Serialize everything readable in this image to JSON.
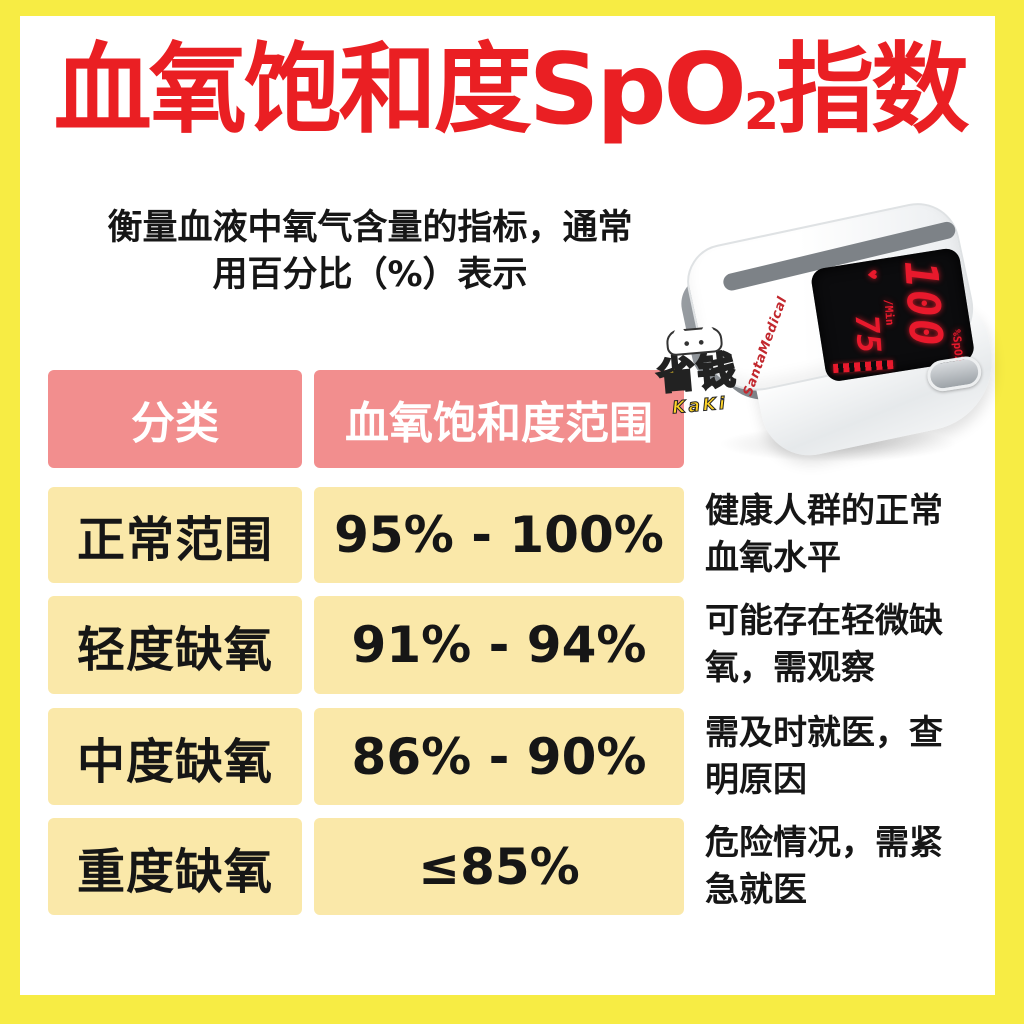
{
  "title": {
    "part1": "血氧饱和度SpO",
    "subscript": "2",
    "part2": "指数"
  },
  "subtitle": {
    "line1": "衡量血液中氧气含量的指标，通常",
    "line2": "用百分比（%）表示"
  },
  "device": {
    "brand": "SantaMedical",
    "spo2_label": "%SpO2",
    "spo2_value": "100",
    "pulse_label": "/Min",
    "pulse_value": "75",
    "heart_icon": "♥"
  },
  "watermark": {
    "text": "省钱",
    "subtext": "KaKi"
  },
  "table": {
    "headers": {
      "category": "分类",
      "range": "血氧饱和度范围"
    },
    "rows": [
      {
        "category": "正常范围",
        "range": "95% - 100%",
        "note": "健康人群的正常血氧水平"
      },
      {
        "category": "轻度缺氧",
        "range": "91% - 94%",
        "note": "可能存在轻微缺氧，需观察"
      },
      {
        "category": "中度缺氧",
        "range": "86% - 90%",
        "note": "需及时就医，查明原因"
      },
      {
        "category": "重度缺氧",
        "range": "≤85%",
        "note": "危险情况，需紧急就医"
      }
    ]
  },
  "colors": {
    "border_yellow": "#F7EC44",
    "header_pink": "#F28E8E",
    "row_yellow": "#FAE8A9",
    "title_red": "#EA1F23",
    "led_red": "#E8192C",
    "text_black": "#161616",
    "device_gray": "#83888D"
  }
}
